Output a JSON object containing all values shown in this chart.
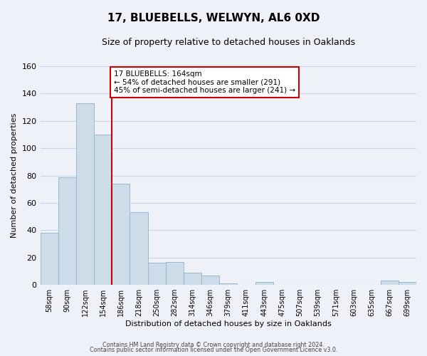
{
  "title": "17, BLUEBELLS, WELWYN, AL6 0XD",
  "subtitle": "Size of property relative to detached houses in Oaklands",
  "xlabel": "Distribution of detached houses by size in Oaklands",
  "ylabel": "Number of detached properties",
  "bar_labels": [
    "58sqm",
    "90sqm",
    "122sqm",
    "154sqm",
    "186sqm",
    "218sqm",
    "250sqm",
    "282sqm",
    "314sqm",
    "346sqm",
    "379sqm",
    "411sqm",
    "443sqm",
    "475sqm",
    "507sqm",
    "539sqm",
    "571sqm",
    "603sqm",
    "635sqm",
    "667sqm",
    "699sqm"
  ],
  "bar_values": [
    38,
    79,
    133,
    110,
    74,
    53,
    16,
    17,
    9,
    7,
    1,
    0,
    2,
    0,
    0,
    0,
    0,
    0,
    0,
    3,
    2
  ],
  "bar_color": "#ccdce8",
  "bar_edge_color": "#9ab8cc",
  "ylim": [
    0,
    160
  ],
  "yticks": [
    0,
    20,
    40,
    60,
    80,
    100,
    120,
    140,
    160
  ],
  "vline_x": 3.5,
  "vline_color": "#cc0000",
  "annotation_text": "17 BLUEBELLS: 164sqm\n← 54% of detached houses are smaller (291)\n45% of semi-detached houses are larger (241) →",
  "annotation_box_color": "#ffffff",
  "annotation_box_edge": "#cc0000",
  "footnote1": "Contains HM Land Registry data © Crown copyright and database right 2024.",
  "footnote2": "Contains public sector information licensed under the Open Government Licence v3.0.",
  "background_color": "#eef2f8",
  "grid_color": "#c8d4e8"
}
